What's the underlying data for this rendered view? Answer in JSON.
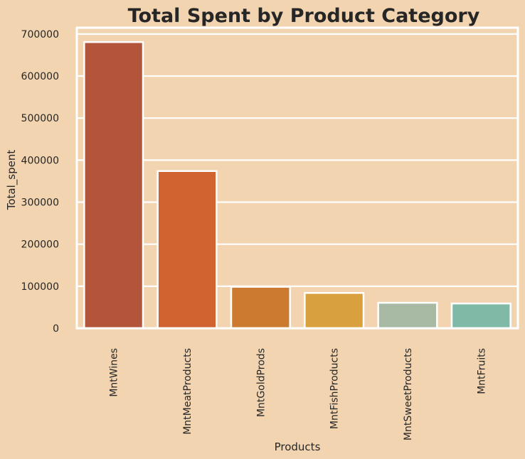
{
  "chart_data": {
    "type": "bar",
    "title": "Total Spent by Product Category",
    "xlabel": "Products",
    "ylabel": "Total_spent",
    "categories": [
      "MntWines",
      "MntMeatProducts",
      "MntGoldProds",
      "MntFishProducts",
      "MntSweetProducts",
      "MntFruits"
    ],
    "values": [
      680816,
      373968,
      98609,
      84057,
      60621,
      58917
    ],
    "yticks": [
      0,
      100000,
      200000,
      300000,
      400000,
      500000,
      600000,
      700000
    ],
    "ylim": [
      0,
      715000
    ],
    "grid": true,
    "colors": {
      "background": "#f2d4b0",
      "grid": "#ffffff",
      "text": "#262626",
      "bars": [
        "#b3553a",
        "#d0632f",
        "#cc7a30",
        "#d9a03e",
        "#a8b9a4",
        "#80b9a6"
      ]
    }
  }
}
